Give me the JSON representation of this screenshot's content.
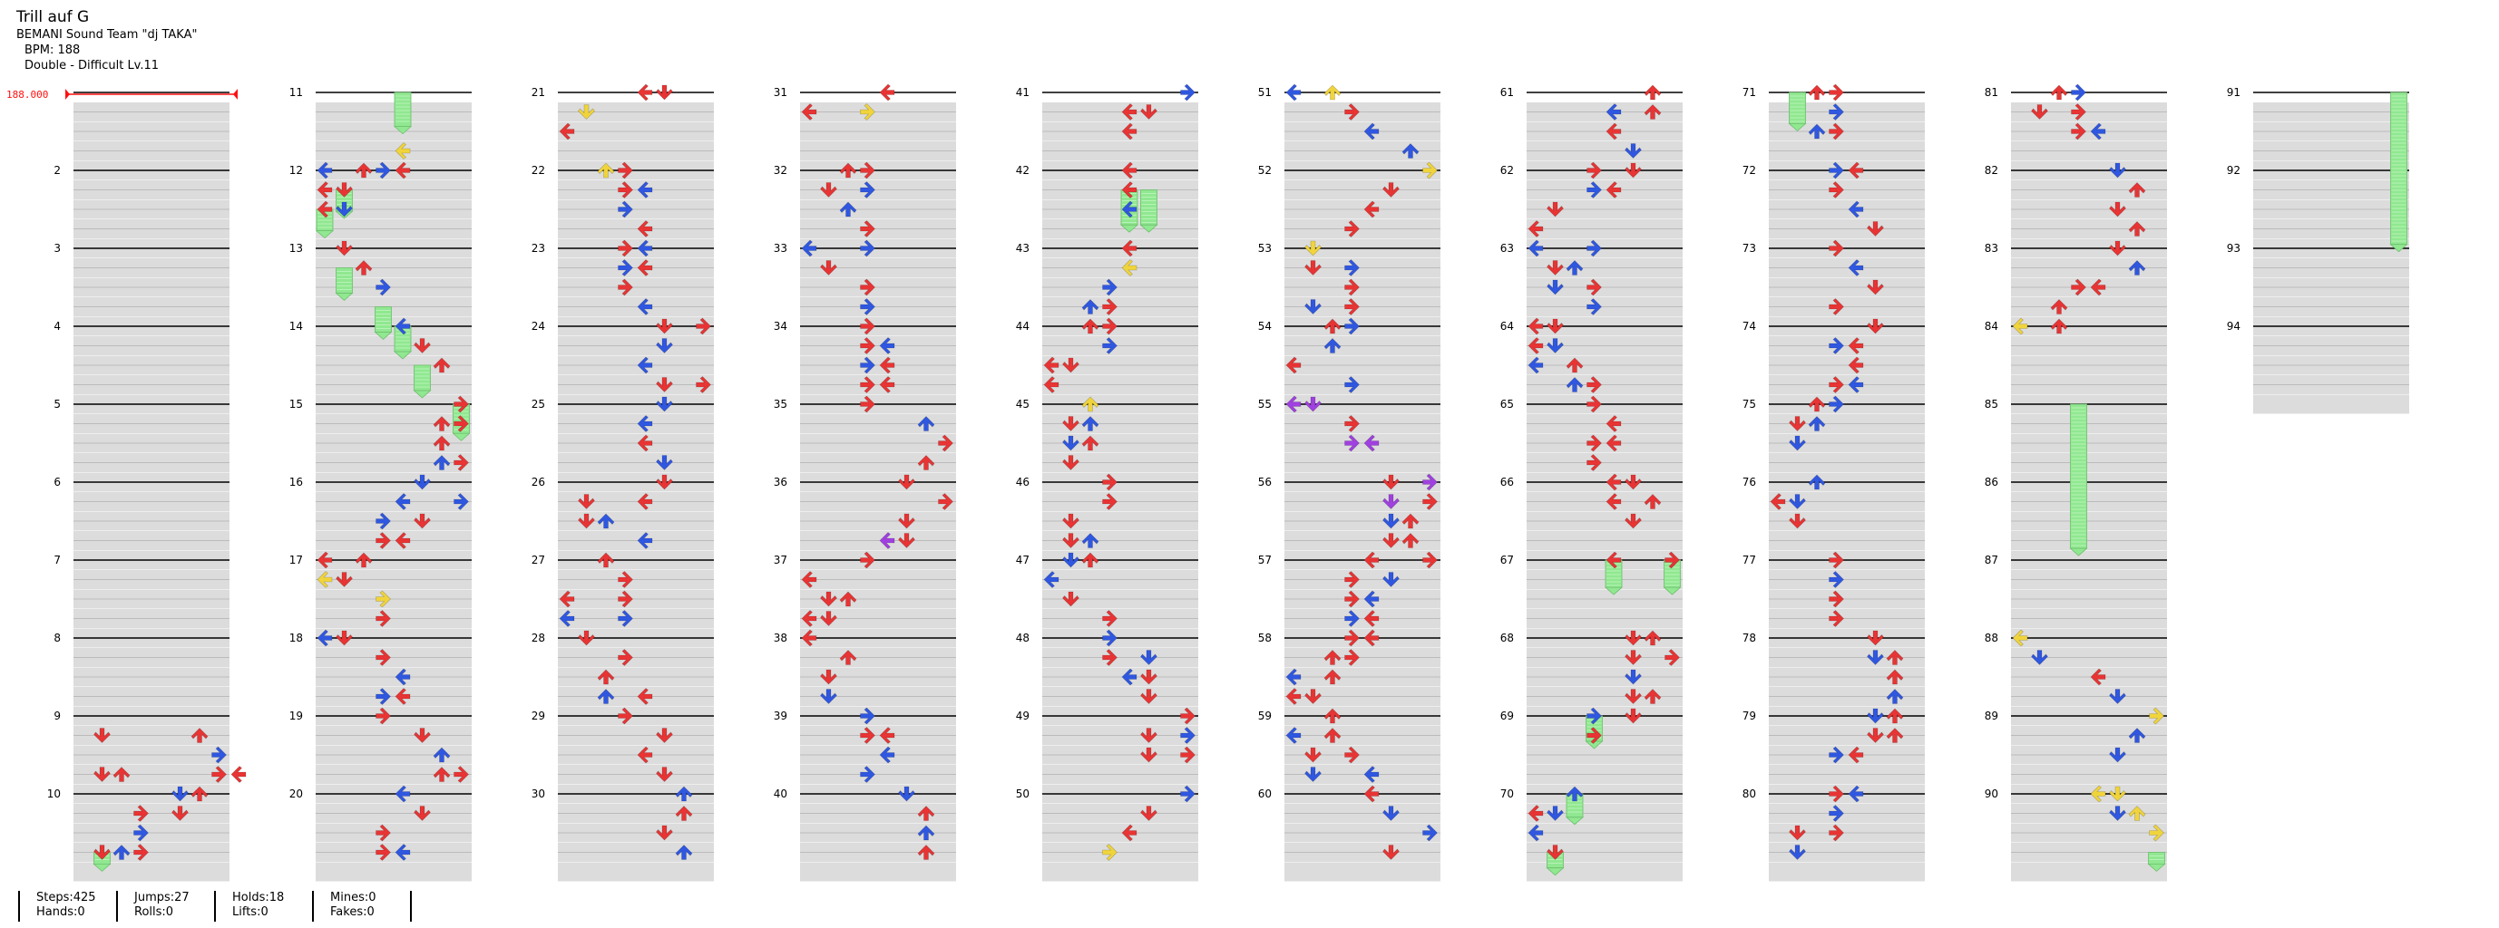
{
  "song": {
    "title": "Trill auf G",
    "artist": "BEMANI Sound Team \"dj TAKA\"",
    "bpm_label": "BPM: 188",
    "chart_label": "Double - Difficult Lv.11"
  },
  "bpm_marker": "188.000",
  "measure_count": 94,
  "columns_count": 10,
  "stats": [
    {
      "top": "Steps:425",
      "bottom": "Hands:0"
    },
    {
      "top": "Jumps:27",
      "bottom": "Rolls:0"
    },
    {
      "top": "Holds:18",
      "bottom": "Lifts:0"
    },
    {
      "top": "Mines:0",
      "bottom": "Fakes:0"
    }
  ],
  "colors": {
    "quarter": "#e83434",
    "eighth": "#2f57e0",
    "sixteenth": "#f0d43c",
    "twelfth": "#a040e0",
    "hold": "#90e890",
    "row_shade": "#dcdcdc",
    "bpm": "#ff1010"
  },
  "notes_by_measure": {
    "9": [
      [
        1,
        1
      ],
      [
        1,
        6
      ],
      [
        2,
        7
      ],
      [
        3,
        1
      ],
      [
        3,
        2
      ],
      [
        3,
        7
      ],
      [
        3,
        8
      ]
    ],
    "10": [
      [
        0,
        5
      ],
      [
        0,
        6
      ],
      [
        1,
        3
      ],
      [
        1,
        5
      ],
      [
        2,
        3
      ],
      [
        3,
        1
      ],
      [
        3,
        2
      ],
      [
        3,
        3
      ]
    ],
    "11": [
      [
        3,
        4
      ],
      [
        4,
        3
      ],
      [
        4,
        4
      ]
    ],
    "12": [
      [
        0,
        0
      ],
      [
        0,
        2
      ],
      [
        1,
        0
      ],
      [
        1,
        1
      ],
      [
        2,
        0
      ],
      [
        2,
        1
      ]
    ],
    "13": [
      [
        0,
        1
      ],
      [
        1,
        2
      ],
      [
        2,
        3
      ]
    ],
    "14": [
      [
        0,
        4
      ],
      [
        1,
        5
      ],
      [
        2,
        6
      ]
    ],
    "15": [
      [
        0,
        7
      ],
      [
        1,
        6
      ],
      [
        1,
        7
      ],
      [
        2,
        6
      ],
      [
        3,
        6
      ],
      [
        3,
        7
      ]
    ],
    "16": [
      [
        0,
        5
      ],
      [
        1,
        4
      ],
      [
        1,
        7
      ],
      [
        2,
        3
      ],
      [
        2,
        5
      ],
      [
        3,
        3
      ],
      [
        3,
        4
      ]
    ],
    "17": [
      [
        0,
        0
      ],
      [
        0,
        2
      ],
      [
        1,
        0
      ],
      [
        1,
        1
      ],
      [
        2,
        3
      ],
      [
        3,
        3
      ]
    ],
    "18": [
      [
        0,
        0
      ],
      [
        0,
        1
      ],
      [
        1,
        3
      ],
      [
        2,
        4
      ],
      [
        3,
        3
      ],
      [
        3,
        4
      ]
    ],
    "19": [
      [
        0,
        3
      ],
      [
        1,
        5
      ],
      [
        2,
        6
      ],
      [
        3,
        6
      ],
      [
        3,
        7
      ]
    ],
    "20": [
      [
        0,
        4
      ],
      [
        1,
        5
      ],
      [
        2,
        3
      ],
      [
        3,
        3
      ],
      [
        3,
        4
      ]
    ],
    "21": [
      [
        0,
        4
      ],
      [
        0,
        5
      ],
      [
        1,
        1
      ],
      [
        2,
        0
      ]
    ],
    "22": [
      [
        0,
        2
      ],
      [
        0,
        3
      ],
      [
        1,
        3
      ],
      [
        1,
        4
      ],
      [
        2,
        3
      ],
      [
        3,
        4
      ]
    ],
    "23": [
      [
        0,
        3
      ],
      [
        0,
        4
      ],
      [
        1,
        3
      ],
      [
        1,
        4
      ],
      [
        2,
        3
      ],
      [
        3,
        4
      ]
    ],
    "24": [
      [
        0,
        5
      ],
      [
        0,
        7
      ],
      [
        1,
        5
      ],
      [
        2,
        4
      ],
      [
        3,
        5
      ],
      [
        3,
        7
      ]
    ],
    "25": [
      [
        0,
        5
      ],
      [
        1,
        4
      ],
      [
        2,
        4
      ],
      [
        3,
        5
      ]
    ],
    "26": [
      [
        0,
        5
      ],
      [
        1,
        1
      ],
      [
        1,
        4
      ],
      [
        2,
        1
      ],
      [
        2,
        2
      ],
      [
        3,
        4
      ]
    ],
    "27": [
      [
        0,
        2
      ],
      [
        1,
        3
      ],
      [
        2,
        0
      ],
      [
        2,
        3
      ],
      [
        3,
        0
      ],
      [
        3,
        3
      ]
    ],
    "28": [
      [
        0,
        1
      ],
      [
        1,
        3
      ],
      [
        2,
        2
      ],
      [
        3,
        2
      ],
      [
        3,
        4
      ]
    ],
    "29": [
      [
        0,
        3
      ],
      [
        1,
        5
      ],
      [
        2,
        4
      ],
      [
        3,
        5
      ]
    ],
    "30": [
      [
        0,
        6
      ],
      [
        1,
        6
      ],
      [
        2,
        5
      ],
      [
        3,
        6
      ]
    ],
    "31": [
      [
        0,
        4
      ],
      [
        1,
        0
      ],
      [
        1,
        3
      ]
    ],
    "32": [
      [
        0,
        2
      ],
      [
        0,
        3
      ],
      [
        1,
        1
      ],
      [
        1,
        3
      ],
      [
        2,
        2
      ],
      [
        3,
        3
      ]
    ],
    "33": [
      [
        0,
        0
      ],
      [
        0,
        3
      ],
      [
        1,
        1
      ],
      [
        2,
        3
      ],
      [
        3,
        3
      ]
    ],
    "34": [
      [
        0,
        3
      ],
      [
        1,
        3
      ],
      [
        1,
        4
      ],
      [
        2,
        3
      ],
      [
        2,
        4
      ],
      [
        3,
        3
      ],
      [
        3,
        4
      ]
    ],
    "35": [
      [
        0,
        3
      ],
      [
        1,
        6
      ],
      [
        2,
        7
      ],
      [
        3,
        6
      ]
    ],
    "36": [
      [
        0,
        5
      ],
      [
        1,
        7
      ],
      [
        2,
        5
      ],
      [
        3,
        4
      ],
      [
        3,
        5
      ]
    ],
    "37": [
      [
        0,
        3
      ],
      [
        1,
        0
      ],
      [
        2,
        1
      ],
      [
        2,
        2
      ],
      [
        3,
        0
      ],
      [
        3,
        1
      ]
    ],
    "38": [
      [
        0,
        0
      ],
      [
        1,
        2
      ],
      [
        2,
        1
      ],
      [
        3,
        1
      ]
    ],
    "39": [
      [
        0,
        3
      ],
      [
        1,
        3
      ],
      [
        1,
        4
      ],
      [
        2,
        4
      ],
      [
        3,
        3
      ]
    ],
    "40": [
      [
        0,
        5
      ],
      [
        1,
        6
      ],
      [
        2,
        6
      ],
      [
        3,
        6
      ]
    ],
    "41": [
      [
        0,
        7
      ],
      [
        1,
        4
      ],
      [
        1,
        5
      ],
      [
        2,
        4
      ]
    ],
    "42": [
      [
        0,
        4
      ],
      [
        1,
        4
      ],
      [
        2,
        4
      ]
    ],
    "43": [
      [
        0,
        4
      ],
      [
        1,
        4
      ],
      [
        2,
        3
      ],
      [
        3,
        2
      ],
      [
        3,
        3
      ]
    ],
    "44": [
      [
        0,
        2
      ],
      [
        0,
        3
      ],
      [
        1,
        3
      ],
      [
        2,
        0
      ],
      [
        2,
        1
      ],
      [
        3,
        0
      ]
    ],
    "45": [
      [
        0,
        2
      ],
      [
        1,
        1
      ],
      [
        1,
        2
      ],
      [
        2,
        1
      ],
      [
        2,
        2
      ],
      [
        3,
        1
      ]
    ],
    "46": [
      [
        0,
        3
      ],
      [
        1,
        3
      ],
      [
        2,
        1
      ],
      [
        3,
        1
      ],
      [
        3,
        2
      ]
    ],
    "47": [
      [
        0,
        1
      ],
      [
        0,
        2
      ],
      [
        1,
        0
      ],
      [
        2,
        1
      ],
      [
        3,
        3
      ]
    ],
    "48": [
      [
        0,
        3
      ],
      [
        1,
        3
      ],
      [
        1,
        5
      ],
      [
        2,
        4
      ],
      [
        2,
        5
      ],
      [
        3,
        5
      ]
    ],
    "49": [
      [
        0,
        7
      ],
      [
        1,
        5
      ],
      [
        1,
        7
      ],
      [
        2,
        5
      ],
      [
        2,
        7
      ]
    ],
    "50": [
      [
        0,
        7
      ],
      [
        1,
        5
      ],
      [
        2,
        4
      ],
      [
        3,
        3
      ]
    ],
    "51": [
      [
        0,
        0
      ],
      [
        0,
        2
      ],
      [
        1,
        3
      ],
      [
        2,
        4
      ],
      [
        3,
        6
      ]
    ],
    "52": [
      [
        0,
        7
      ],
      [
        1,
        5
      ],
      [
        2,
        4
      ],
      [
        3,
        3
      ]
    ],
    "53": [
      [
        0,
        1
      ],
      [
        1,
        1
      ],
      [
        1,
        3
      ],
      [
        2,
        3
      ],
      [
        3,
        1
      ],
      [
        3,
        3
      ]
    ],
    "54": [
      [
        0,
        2
      ],
      [
        0,
        3
      ],
      [
        1,
        2
      ],
      [
        2,
        0
      ],
      [
        3,
        3
      ]
    ],
    "55": [
      [
        0,
        0
      ],
      [
        0,
        1
      ],
      [
        1,
        3
      ],
      [
        2,
        3
      ],
      [
        2,
        4
      ]
    ],
    "56": [
      [
        0,
        5
      ],
      [
        0,
        7
      ],
      [
        1,
        5
      ],
      [
        1,
        7
      ],
      [
        2,
        5
      ],
      [
        2,
        6
      ],
      [
        3,
        5
      ],
      [
        3,
        6
      ]
    ],
    "57": [
      [
        0,
        4
      ],
      [
        0,
        7
      ],
      [
        1,
        3
      ],
      [
        1,
        5
      ],
      [
        2,
        3
      ],
      [
        2,
        4
      ],
      [
        3,
        3
      ],
      [
        3,
        4
      ]
    ],
    "58": [
      [
        0,
        3
      ],
      [
        0,
        4
      ],
      [
        1,
        2
      ],
      [
        1,
        3
      ],
      [
        2,
        0
      ],
      [
        2,
        2
      ],
      [
        3,
        0
      ],
      [
        3,
        1
      ]
    ],
    "59": [
      [
        0,
        2
      ],
      [
        1,
        0
      ],
      [
        1,
        2
      ],
      [
        2,
        1
      ],
      [
        2,
        3
      ],
      [
        3,
        1
      ],
      [
        3,
        4
      ]
    ],
    "60": [
      [
        0,
        4
      ],
      [
        1,
        5
      ],
      [
        2,
        7
      ],
      [
        3,
        5
      ]
    ],
    "61": [
      [
        0,
        6
      ],
      [
        1,
        4
      ],
      [
        1,
        6
      ],
      [
        2,
        4
      ],
      [
        3,
        5
      ]
    ],
    "62": [
      [
        0,
        3
      ],
      [
        0,
        5
      ],
      [
        1,
        3
      ],
      [
        1,
        4
      ],
      [
        2,
        1
      ],
      [
        3,
        0
      ]
    ],
    "63": [
      [
        0,
        0
      ],
      [
        0,
        3
      ],
      [
        1,
        1
      ],
      [
        1,
        2
      ],
      [
        2,
        1
      ],
      [
        2,
        3
      ],
      [
        3,
        3
      ]
    ],
    "64": [
      [
        0,
        0
      ],
      [
        0,
        1
      ],
      [
        1,
        0
      ],
      [
        1,
        1
      ],
      [
        2,
        0
      ],
      [
        2,
        2
      ],
      [
        3,
        2
      ],
      [
        3,
        3
      ]
    ],
    "65": [
      [
        0,
        3
      ],
      [
        1,
        4
      ],
      [
        2,
        3
      ],
      [
        2,
        4
      ],
      [
        3,
        3
      ]
    ],
    "66": [
      [
        0,
        4
      ],
      [
        0,
        5
      ],
      [
        1,
        4
      ],
      [
        1,
        6
      ],
      [
        2,
        5
      ]
    ],
    "67": [
      [
        0,
        4
      ],
      [
        0,
        7
      ]
    ],
    "68": [
      [
        0,
        5
      ],
      [
        0,
        6
      ],
      [
        1,
        5
      ],
      [
        1,
        7
      ],
      [
        2,
        5
      ],
      [
        3,
        5
      ],
      [
        3,
        6
      ]
    ],
    "69": [
      [
        0,
        3
      ],
      [
        0,
        5
      ],
      [
        1,
        3
      ]
    ],
    "70": [
      [
        0,
        2
      ],
      [
        1,
        0
      ],
      [
        1,
        1
      ],
      [
        2,
        0
      ],
      [
        3,
        1
      ]
    ],
    "71": [
      [
        0,
        2
      ],
      [
        0,
        3
      ],
      [
        1,
        3
      ],
      [
        2,
        2
      ],
      [
        2,
        3
      ]
    ],
    "72": [
      [
        0,
        3
      ],
      [
        0,
        4
      ],
      [
        1,
        3
      ],
      [
        2,
        4
      ],
      [
        3,
        5
      ]
    ],
    "73": [
      [
        0,
        3
      ],
      [
        1,
        4
      ],
      [
        2,
        5
      ],
      [
        3,
        3
      ]
    ],
    "74": [
      [
        0,
        5
      ],
      [
        1,
        3
      ],
      [
        1,
        4
      ],
      [
        2,
        4
      ],
      [
        3,
        3
      ],
      [
        3,
        4
      ]
    ],
    "75": [
      [
        0,
        2
      ],
      [
        0,
        3
      ],
      [
        1,
        1
      ],
      [
        1,
        2
      ],
      [
        2,
        1
      ]
    ],
    "76": [
      [
        0,
        2
      ],
      [
        1,
        0
      ],
      [
        1,
        1
      ],
      [
        2,
        1
      ]
    ],
    "77": [
      [
        0,
        3
      ],
      [
        1,
        3
      ],
      [
        2,
        3
      ],
      [
        3,
        3
      ]
    ],
    "78": [
      [
        0,
        5
      ],
      [
        1,
        5
      ],
      [
        1,
        6
      ],
      [
        2,
        6
      ],
      [
        3,
        6
      ]
    ],
    "79": [
      [
        0,
        5
      ],
      [
        0,
        6
      ],
      [
        1,
        5
      ],
      [
        1,
        6
      ],
      [
        2,
        3
      ],
      [
        2,
        4
      ]
    ],
    "80": [
      [
        0,
        3
      ],
      [
        0,
        4
      ],
      [
        1,
        3
      ],
      [
        2,
        1
      ],
      [
        2,
        3
      ],
      [
        3,
        1
      ]
    ],
    "81": [
      [
        0,
        2
      ],
      [
        0,
        3
      ],
      [
        1,
        1
      ],
      [
        1,
        3
      ],
      [
        2,
        3
      ],
      [
        2,
        4
      ]
    ],
    "82": [
      [
        0,
        5
      ],
      [
        1,
        6
      ],
      [
        2,
        5
      ],
      [
        3,
        6
      ]
    ],
    "83": [
      [
        0,
        5
      ],
      [
        1,
        6
      ],
      [
        2,
        3
      ],
      [
        2,
        4
      ],
      [
        3,
        2
      ]
    ],
    "84": [
      [
        0,
        0
      ],
      [
        0,
        2
      ]
    ],
    "88": [
      [
        0,
        0
      ],
      [
        1,
        1
      ],
      [
        2,
        4
      ],
      [
        3,
        5
      ]
    ],
    "89": [
      [
        0,
        7
      ],
      [
        1,
        6
      ],
      [
        2,
        5
      ]
    ],
    "90": [
      [
        0,
        4
      ],
      [
        0,
        5
      ],
      [
        1,
        5
      ],
      [
        1,
        6
      ],
      [
        2,
        7
      ]
    ]
  }
}
